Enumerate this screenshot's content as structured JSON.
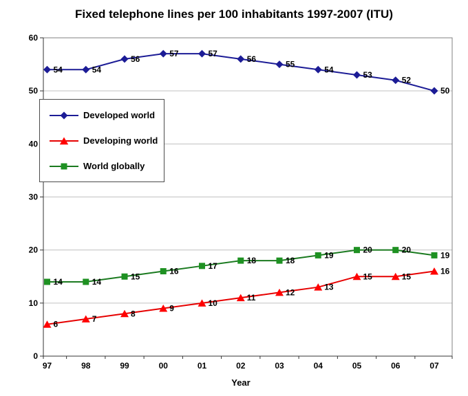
{
  "chart_data": {
    "type": "line",
    "title": "Fixed telephone lines per 100 inhabitants 1997-2007 (ITU)",
    "xlabel": "Year",
    "ylabel": "",
    "ylim": [
      0,
      60
    ],
    "ytick_step": 10,
    "grid": true,
    "legend_position": "upper-left",
    "data_labels": true,
    "categories": [
      "97",
      "98",
      "99",
      "00",
      "01",
      "02",
      "03",
      "04",
      "05",
      "06",
      "07"
    ],
    "series": [
      {
        "name": "Developed world",
        "marker": "diamond",
        "color": "#1c1c96",
        "line_color": "#1c1c96",
        "values": [
          54,
          54,
          56,
          57,
          57,
          56,
          55,
          54,
          53,
          52,
          50
        ]
      },
      {
        "name": "Developing world",
        "marker": "triangle",
        "color": "#ff0000",
        "line_color": "#e60000",
        "values": [
          6,
          7,
          8,
          9,
          10,
          11,
          12,
          13,
          15,
          15,
          16
        ]
      },
      {
        "name": "World globally",
        "marker": "square",
        "color": "#1e9122",
        "line_color": "#1a7a1f",
        "values": [
          14,
          14,
          15,
          16,
          17,
          18,
          18,
          19,
          20,
          20,
          19
        ]
      }
    ],
    "colors": {
      "gridline": "#c0c0c0",
      "plot_border": "#808080",
      "axis": "#333333",
      "text": "#000000",
      "background": "#ffffff"
    }
  }
}
